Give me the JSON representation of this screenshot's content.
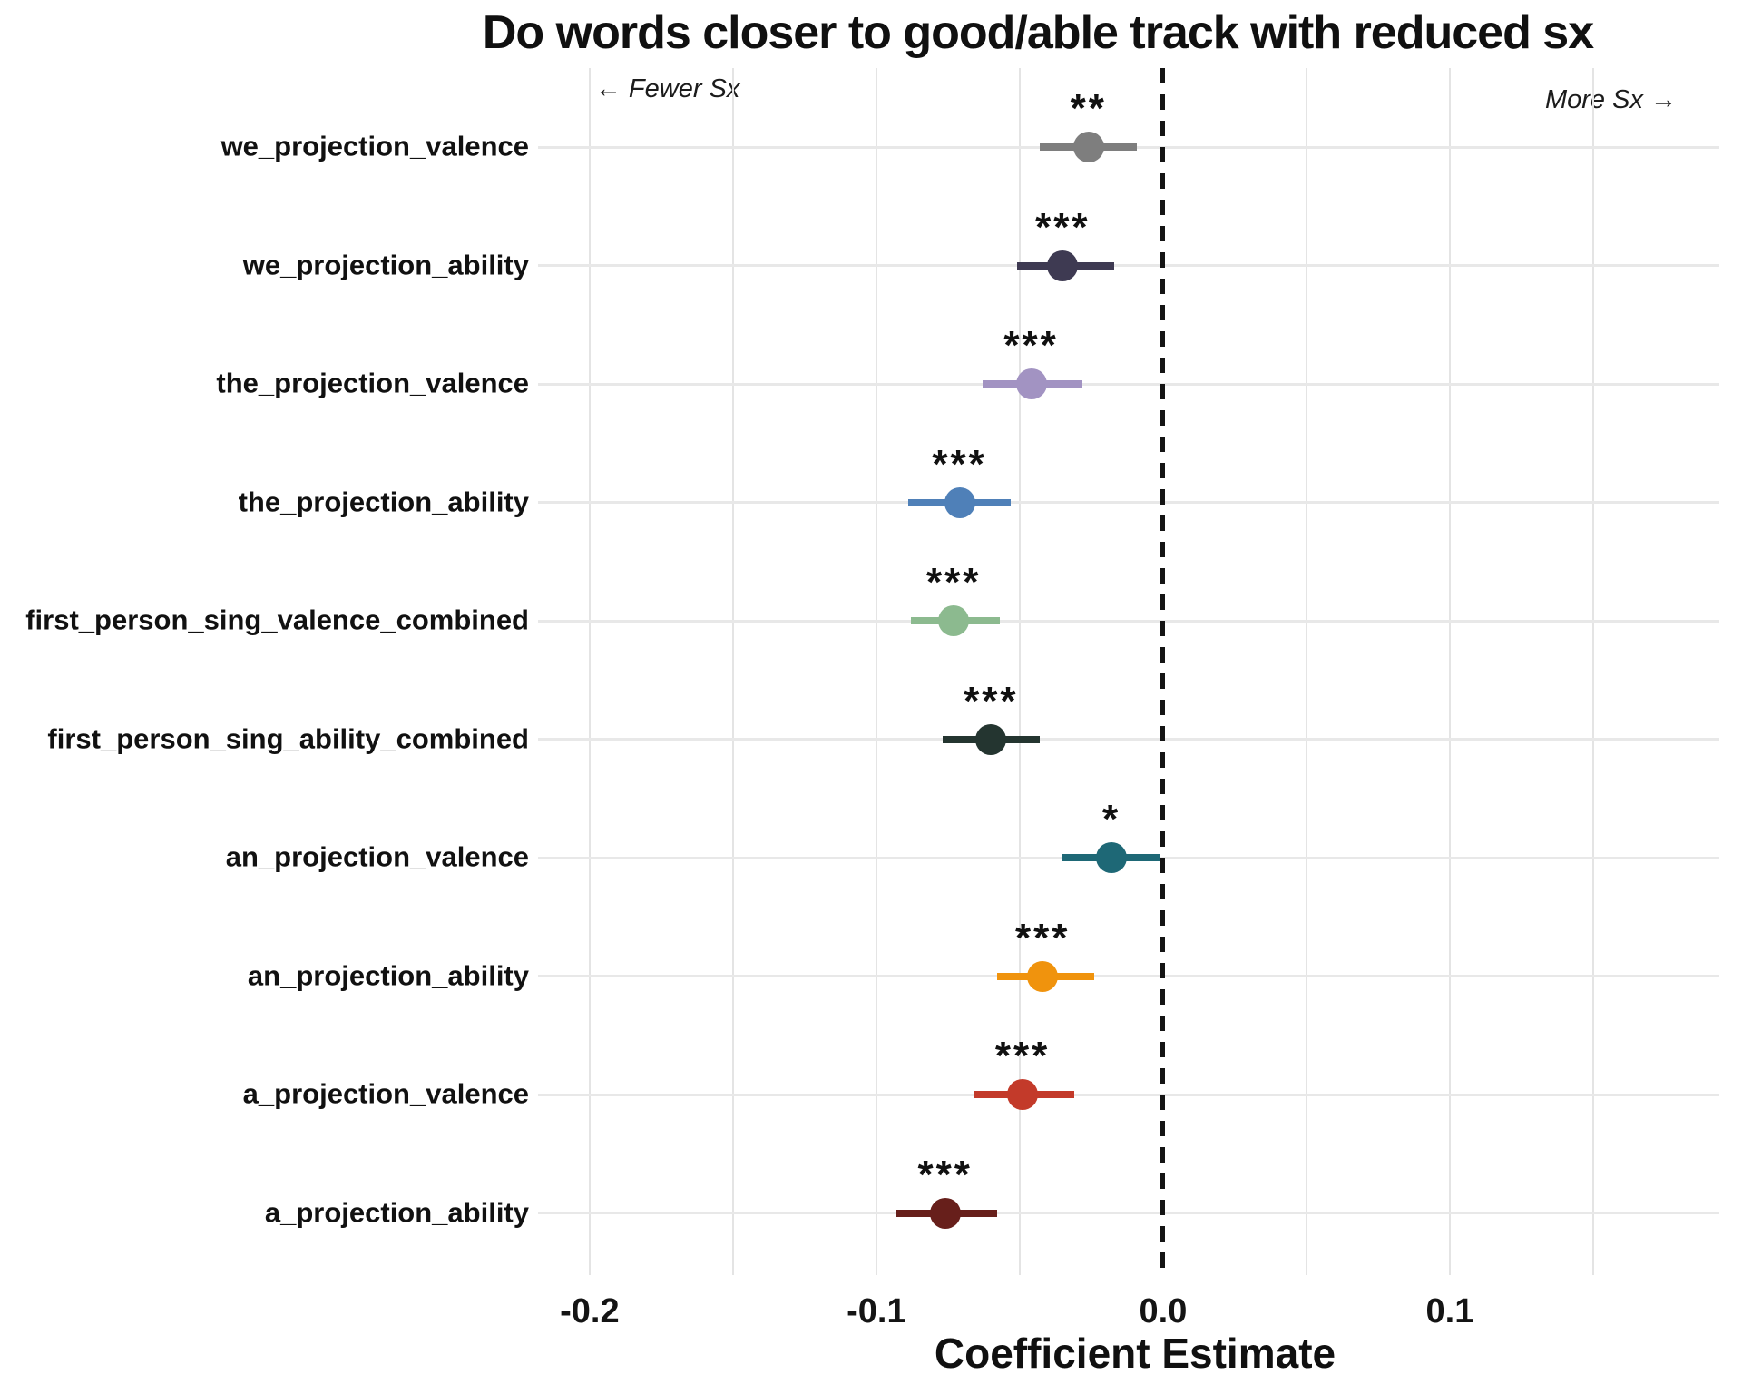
{
  "title": "Do words closer to good/able track with reduced sx",
  "annotations": {
    "fewer": "← Fewer Sx",
    "more": "More Sx →"
  },
  "x_axis": {
    "title": "Coefficient Estimate",
    "tick_values": [
      -0.2,
      -0.1,
      0.0,
      0.1
    ],
    "tick_labels": [
      "-0.2",
      "-0.1",
      "0.0",
      "0.1"
    ],
    "minor_gridlines": [
      -0.2,
      -0.15,
      -0.1,
      -0.05,
      0.05,
      0.1,
      0.15
    ]
  },
  "chart_data": {
    "type": "scatter",
    "subtype": "horizontal dot-whisker coefficient plot",
    "title": "Do words closer to good/able track with reduced sx",
    "xlabel": "Coefficient Estimate",
    "ylabel": "",
    "xlim": [
      -0.218,
      0.194
    ],
    "zero_line": 0.0,
    "grid": true,
    "legend": false,
    "categories": [
      "we_projection_valence",
      "we_projection_ability",
      "the_projection_valence",
      "the_projection_ability",
      "first_person_sing_valence_combined",
      "first_person_sing_ability_combined",
      "an_projection_valence",
      "an_projection_ability",
      "a_projection_valence",
      "a_projection_ability"
    ],
    "rows": [
      {
        "label": "we_projection_valence",
        "estimate": -0.026,
        "ci_low": -0.043,
        "ci_high": -0.009,
        "significance": "**",
        "color": "#7e7e7e"
      },
      {
        "label": "we_projection_ability",
        "estimate": -0.035,
        "ci_low": -0.051,
        "ci_high": -0.017,
        "significance": "***",
        "color": "#3e3a52"
      },
      {
        "label": "the_projection_valence",
        "estimate": -0.046,
        "ci_low": -0.063,
        "ci_high": -0.028,
        "significance": "***",
        "color": "#a293c2"
      },
      {
        "label": "the_projection_ability",
        "estimate": -0.071,
        "ci_low": -0.089,
        "ci_high": -0.053,
        "significance": "***",
        "color": "#4f80b8"
      },
      {
        "label": "first_person_sing_valence_combined",
        "estimate": -0.073,
        "ci_low": -0.088,
        "ci_high": -0.057,
        "significance": "***",
        "color": "#8cba8f"
      },
      {
        "label": "first_person_sing_ability_combined",
        "estimate": -0.06,
        "ci_low": -0.077,
        "ci_high": -0.043,
        "significance": "***",
        "color": "#243530"
      },
      {
        "label": "an_projection_valence",
        "estimate": -0.018,
        "ci_low": -0.035,
        "ci_high": -0.001,
        "significance": "*",
        "color": "#1e6876"
      },
      {
        "label": "an_projection_ability",
        "estimate": -0.042,
        "ci_low": -0.058,
        "ci_high": -0.024,
        "significance": "***",
        "color": "#f0930d"
      },
      {
        "label": "a_projection_valence",
        "estimate": -0.049,
        "ci_low": -0.066,
        "ci_high": -0.031,
        "significance": "***",
        "color": "#c33a2a"
      },
      {
        "label": "a_projection_ability",
        "estimate": -0.076,
        "ci_low": -0.093,
        "ci_high": -0.058,
        "significance": "***",
        "color": "#671f1b"
      }
    ]
  }
}
